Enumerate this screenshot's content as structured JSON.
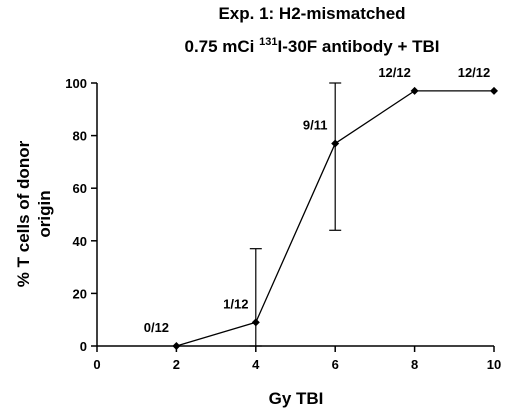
{
  "chart_data": {
    "type": "line",
    "title_line1": "Exp. 1:  H2-mismatched",
    "title_line2_prefix": "0.75 mCi ",
    "title_line2_superscript": "131",
    "title_line2_suffix": "I-30F antibody + TBI",
    "xlabel": "Gy TBI",
    "ylabel_line1": "% T cells of donor",
    "ylabel_line2": "origin",
    "xlim": [
      0,
      10
    ],
    "ylim": [
      0,
      100
    ],
    "xticks": [
      "0",
      "2",
      "4",
      "6",
      "8",
      "10"
    ],
    "yticks": [
      "0",
      "20",
      "40",
      "60",
      "80",
      "100"
    ],
    "grid": false,
    "points": [
      {
        "x": 2,
        "y": 0,
        "err_low": 0,
        "err_high": 0,
        "label": "0/12"
      },
      {
        "x": 4,
        "y": 9,
        "err_low": 0,
        "err_high": 37,
        "label": "1/12"
      },
      {
        "x": 6,
        "y": 77,
        "err_low": 44,
        "err_high": 100,
        "label": "9/11"
      },
      {
        "x": 8,
        "y": 97,
        "err_low": 97,
        "err_high": 97,
        "label": "12/12"
      },
      {
        "x": 10,
        "y": 97,
        "err_low": 97,
        "err_high": 97,
        "label": "12/12"
      }
    ]
  }
}
